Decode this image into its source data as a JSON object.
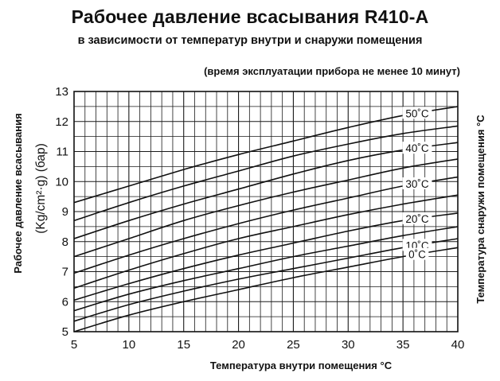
{
  "header": {
    "title": "Рабочее давление всасывания R410-A",
    "subtitle": "в зависимости от температур внутри и снаружи помещения",
    "note": "(время эксплуатации прибора не менее 10 минут)"
  },
  "chart_data": {
    "type": "line",
    "title": "Рабочее давление всасывания R410-A",
    "xlabel": "Температура внутри помещения  °С",
    "ylabel": "Рабочее давление всасывания",
    "ylabel_unit": "(Kg/cm²·g)   (бар)",
    "right_label": "Температура снаружи помещения °С",
    "xlim": [
      5,
      40
    ],
    "ylim": [
      5,
      13
    ],
    "x_ticks": [
      5,
      10,
      15,
      20,
      25,
      30,
      35,
      40
    ],
    "y_ticks": [
      5,
      6,
      7,
      8,
      9,
      10,
      11,
      12,
      13
    ],
    "grid": true,
    "x": [
      5,
      10,
      15,
      20,
      25,
      30,
      35,
      40
    ],
    "series": [
      {
        "values": [
          9.3,
          9.85,
          10.4,
          10.9,
          11.35,
          11.8,
          12.2,
          12.5
        ]
      },
      {
        "values": [
          8.7,
          9.3,
          9.85,
          10.35,
          10.85,
          11.25,
          11.6,
          11.85
        ]
      },
      {
        "values": [
          8.1,
          8.7,
          9.25,
          9.75,
          10.25,
          10.7,
          11.05,
          11.3
        ]
      },
      {
        "values": [
          7.5,
          8.1,
          8.7,
          9.2,
          9.65,
          10.05,
          10.45,
          10.75
        ]
      },
      {
        "values": [
          6.95,
          7.55,
          8.1,
          8.6,
          9.05,
          9.45,
          9.85,
          10.15
        ]
      },
      {
        "values": [
          6.45,
          7.05,
          7.6,
          8.1,
          8.5,
          8.9,
          9.25,
          9.55
        ]
      },
      {
        "values": [
          6.05,
          6.6,
          7.1,
          7.55,
          7.95,
          8.35,
          8.7,
          8.95
        ]
      },
      {
        "values": [
          5.7,
          6.25,
          6.7,
          7.1,
          7.5,
          7.85,
          8.2,
          8.5
        ]
      },
      {
        "values": [
          5.35,
          5.9,
          6.35,
          6.75,
          7.1,
          7.45,
          7.8,
          8.1
        ]
      },
      {
        "values": [
          5.0,
          5.55,
          6.0,
          6.4,
          6.8,
          7.15,
          7.5,
          7.8
        ]
      }
    ],
    "curve_labels": [
      {
        "text": "50˚C",
        "series": 0
      },
      {
        "text": "40˚C",
        "series": 2
      },
      {
        "text": "30˚C",
        "series": 4
      },
      {
        "text": "20˚C",
        "series": 6
      },
      {
        "text": "10˚C",
        "series": 8
      },
      {
        "text": "0˚C",
        "series": 9
      }
    ]
  }
}
